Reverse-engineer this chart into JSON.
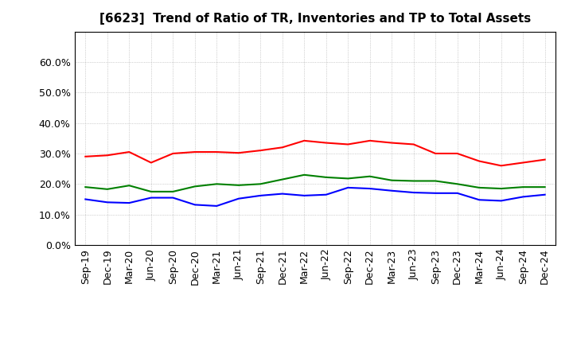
{
  "title": "[6623]  Trend of Ratio of TR, Inventories and TP to Total Assets",
  "labels": [
    "Sep-19",
    "Dec-19",
    "Mar-20",
    "Jun-20",
    "Sep-20",
    "Dec-20",
    "Mar-21",
    "Jun-21",
    "Sep-21",
    "Dec-21",
    "Mar-22",
    "Jun-22",
    "Sep-22",
    "Dec-22",
    "Mar-23",
    "Jun-23",
    "Sep-23",
    "Dec-23",
    "Mar-24",
    "Jun-24",
    "Sep-24",
    "Dec-24"
  ],
  "trade_receivables": [
    0.29,
    0.294,
    0.305,
    0.27,
    0.3,
    0.305,
    0.305,
    0.302,
    0.31,
    0.32,
    0.342,
    0.335,
    0.33,
    0.342,
    0.335,
    0.33,
    0.3,
    0.3,
    0.275,
    0.26,
    0.27,
    0.28
  ],
  "inventories": [
    0.15,
    0.14,
    0.138,
    0.155,
    0.155,
    0.132,
    0.128,
    0.152,
    0.162,
    0.168,
    0.162,
    0.165,
    0.188,
    0.185,
    0.178,
    0.172,
    0.17,
    0.17,
    0.148,
    0.145,
    0.158,
    0.165
  ],
  "trade_payables": [
    0.19,
    0.183,
    0.195,
    0.175,
    0.175,
    0.192,
    0.2,
    0.196,
    0.2,
    0.215,
    0.23,
    0.222,
    0.218,
    0.225,
    0.212,
    0.21,
    0.21,
    0.2,
    0.188,
    0.185,
    0.19,
    0.19
  ],
  "color_tr": "#ff0000",
  "color_inv": "#0000ff",
  "color_tp": "#008000",
  "ylim": [
    0.0,
    0.7
  ],
  "yticks": [
    0.0,
    0.1,
    0.2,
    0.3,
    0.4,
    0.5,
    0.6
  ],
  "background_color": "#ffffff",
  "grid_color": "#aaaaaa",
  "title_fontsize": 11,
  "tick_fontsize": 9,
  "legend_fontsize": 9
}
